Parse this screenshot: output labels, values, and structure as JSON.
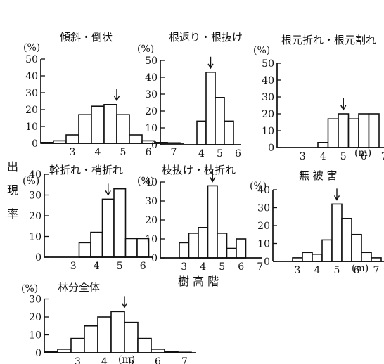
{
  "figure": {
    "ylabel_chars": [
      "出",
      "現",
      "率"
    ],
    "xlabel": "樹 高 階"
  },
  "chart_data": [
    {
      "type": "bar",
      "title": "傾斜・倒状",
      "unit_label": "(%)",
      "x": [
        2.0,
        2.5,
        3.0,
        3.5,
        4.0,
        4.5,
        5.0,
        5.5,
        6.0,
        6.5,
        7.0
      ],
      "values": [
        0.5,
        1.5,
        5,
        17,
        22,
        23,
        17,
        5,
        1.5,
        0.5,
        0.3
      ],
      "xticks": [
        "3",
        "4",
        "5",
        "6",
        "7"
      ],
      "xtick_values": [
        3,
        4,
        5,
        6,
        7
      ],
      "xunit": "",
      "yticks": [
        "0",
        "10",
        "20",
        "30",
        "40",
        "50"
      ],
      "ylim": [
        0,
        50
      ],
      "arrow_at": 4.5
    },
    {
      "type": "bar",
      "title": "根返り・根抜け",
      "unit_label": "(%)",
      "x": [
        4.0,
        4.5,
        5.0,
        5.5
      ],
      "values": [
        14,
        43,
        28,
        14
      ],
      "xticks": [
        "4",
        "5",
        "6"
      ],
      "xtick_values": [
        4,
        5,
        6
      ],
      "xunit": "",
      "yticks": [
        "0",
        "10",
        "20",
        "30",
        "40",
        "50"
      ],
      "ylim": [
        0,
        50
      ],
      "arrow_at": 4.5
    },
    {
      "type": "bar",
      "title": "根元折れ・根元割れ",
      "unit_label": "(%)",
      "x": [
        4.0,
        4.5,
        5.0,
        5.5,
        6.0,
        6.5
      ],
      "values": [
        3,
        17,
        20,
        17,
        20,
        20
      ],
      "xticks": [
        "3",
        "4",
        "5",
        "6",
        "7"
      ],
      "xtick_values": [
        3,
        4,
        5,
        6,
        7
      ],
      "xunit": "(m)",
      "yticks": [
        "0",
        "10",
        "20",
        "30",
        "40",
        "50"
      ],
      "ylim": [
        0,
        50
      ],
      "arrow_at": 5.0
    },
    {
      "type": "bar",
      "title": "幹折れ・梢折れ",
      "unit_label": "(%)",
      "x": [
        3.5,
        4.0,
        4.5,
        5.0,
        5.5,
        6.0
      ],
      "values": [
        7,
        12,
        28,
        33,
        9,
        9
      ],
      "xticks": [
        "3",
        "4",
        "5",
        "6"
      ],
      "xtick_values": [
        3,
        4,
        5,
        6
      ],
      "xunit": "",
      "yticks": [
        "0",
        "10",
        "20",
        "30",
        "40"
      ],
      "ylim": [
        0,
        40
      ],
      "arrow_at": 4.5
    },
    {
      "type": "bar",
      "title": "枝抜け・枝折れ",
      "unit_label": "(%)",
      "x": [
        3.0,
        3.5,
        4.0,
        4.5,
        5.0,
        5.5,
        6.0,
        6.5
      ],
      "values": [
        8,
        13,
        16,
        38,
        13,
        5,
        10,
        0
      ],
      "xticks": [
        "3",
        "4",
        "5",
        "6",
        "7"
      ],
      "xtick_values": [
        3,
        4,
        5,
        6,
        7
      ],
      "xunit": "",
      "yticks": [
        "0",
        "10",
        "20",
        "30",
        "40"
      ],
      "ylim": [
        0,
        40
      ],
      "arrow_at": 4.5
    },
    {
      "type": "bar",
      "title": "無 被 害",
      "unit_label": "(%)",
      "x": [
        3.0,
        3.5,
        4.0,
        4.5,
        5.0,
        5.5,
        6.0,
        6.5,
        7.0
      ],
      "values": [
        2,
        5,
        4,
        12,
        32,
        24,
        15,
        5,
        2
      ],
      "xticks": [
        "3",
        "4",
        "5",
        "6",
        "7"
      ],
      "xtick_values": [
        3,
        4,
        5,
        6,
        7
      ],
      "xunit": "(m)",
      "yticks": [
        "0",
        "10",
        "20",
        "30",
        "40"
      ],
      "ylim": [
        0,
        40
      ],
      "arrow_at": 5.0
    },
    {
      "type": "bar",
      "title": "林分全体",
      "unit_label": "(%)",
      "x": [
        2.0,
        2.5,
        3.0,
        3.5,
        4.0,
        4.5,
        5.0,
        5.5,
        6.0,
        6.5,
        7.0
      ],
      "values": [
        0.5,
        2,
        8,
        15,
        20,
        23,
        17,
        8,
        2,
        0.5,
        0.3
      ],
      "xticks": [
        "3",
        "4",
        "5",
        "6",
        "7"
      ],
      "xtick_values": [
        3,
        4,
        5,
        6,
        7
      ],
      "xunit": "(m)",
      "yticks": [
        "0",
        "10",
        "20",
        "30"
      ],
      "ylim": [
        0,
        30
      ],
      "arrow_at": 4.5
    }
  ]
}
